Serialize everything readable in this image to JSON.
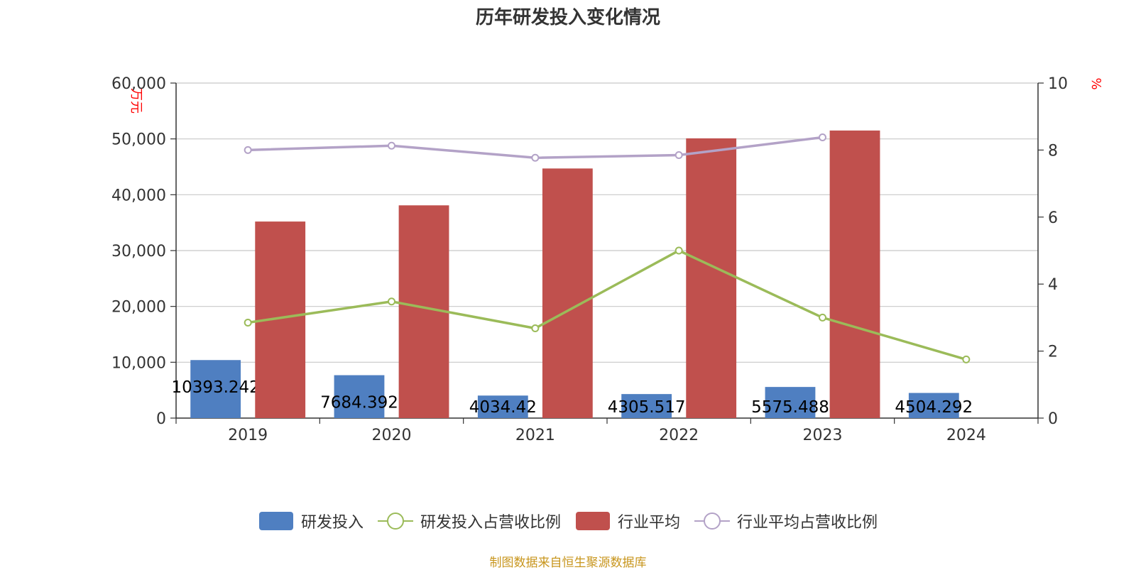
{
  "chart_data": {
    "type": "bar",
    "title": "历年研发投入变化情况",
    "source": "制图数据来自恒生聚源数据库",
    "categories": [
      "2019",
      "2020",
      "2021",
      "2022",
      "2023",
      "2024"
    ],
    "y_left": {
      "label": "万元",
      "ylim": [
        0,
        60000
      ],
      "ticks": [
        "0",
        "10,000",
        "20,000",
        "30,000",
        "40,000",
        "50,000",
        "60,000"
      ]
    },
    "y_right": {
      "label": "%",
      "ylim": [
        0,
        10
      ],
      "ticks": [
        "0",
        "2",
        "4",
        "6",
        "8",
        "10"
      ]
    },
    "grid": true,
    "legend_position": "bottom",
    "series": [
      {
        "name": "研发投入",
        "type": "bar",
        "axis": "left",
        "color": "#4f7fc1",
        "values": [
          10393.242,
          7684.392,
          4034.42,
          4305.517,
          5575.488,
          4504.292
        ],
        "labels": [
          "10393.242",
          "7684.392",
          "4034.42",
          "4305.517",
          "5575.488",
          "4504.292"
        ]
      },
      {
        "name": "研发投入占营收比例",
        "type": "line",
        "axis": "right",
        "color": "#9bbb59",
        "values": [
          2.85,
          3.48,
          2.68,
          5.0,
          3.0,
          1.75
        ]
      },
      {
        "name": "行业平均",
        "type": "bar",
        "axis": "left",
        "color": "#c0504d",
        "values": [
          35200,
          38100,
          44700,
          50100,
          51500,
          null
        ]
      },
      {
        "name": "行业平均占营收比例",
        "type": "line",
        "axis": "right",
        "color": "#b3a2c7",
        "values": [
          8.0,
          8.13,
          7.77,
          7.85,
          8.38,
          null
        ]
      }
    ]
  },
  "colors": {
    "title": "#333333",
    "axis_label": "#ff0000",
    "source": "#c8961e",
    "grid": "#c8c8c8",
    "axis": "#333333"
  }
}
